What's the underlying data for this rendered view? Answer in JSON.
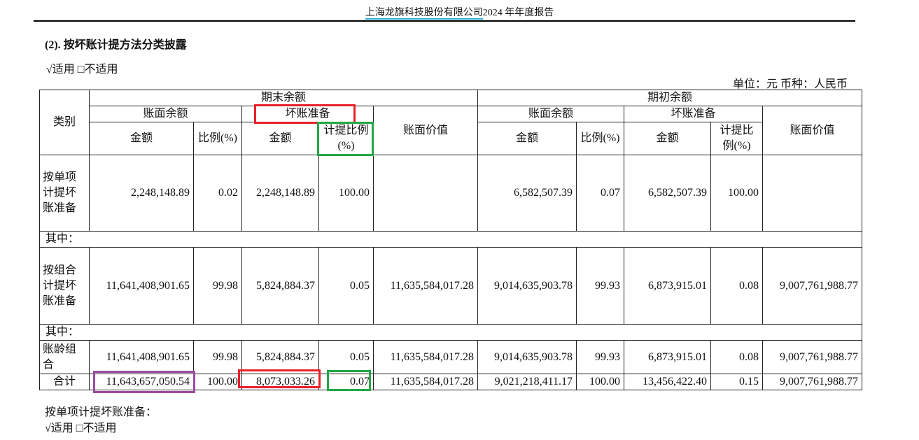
{
  "header": {
    "company": "上海龙旗科技股份有限公司",
    "report": "2024 年年度报告"
  },
  "section_title": "(2).  按坏账计提方法分类披露",
  "applicability": "√适用  □不适用",
  "unit": "单位：元    币种：人民币",
  "table": {
    "h_category": "类别",
    "h_end": "期末余额",
    "h_begin": "期初余额",
    "h_book_balance": "账面余额",
    "h_bad_debt": "坏账准备",
    "h_book_value": "账面价值",
    "h_amount": "金额",
    "h_ratio": "比例(%)",
    "h_provision_ratio": "计提比例(%)",
    "rows": [
      {
        "label": "按单项计提坏账准备",
        "cells": [
          "2,248,148.89",
          "0.02",
          "2,248,148.89",
          "100.00",
          "",
          "6,582,507.39",
          "0.07",
          "6,582,507.39",
          "100.00",
          ""
        ]
      },
      {
        "label": "其中：",
        "sub": true
      },
      {
        "label": "按组合计提坏账准备",
        "cells": [
          "11,641,408,901.65",
          "99.98",
          "5,824,884.37",
          "0.05",
          "11,635,584,017.28",
          "9,014,635,903.78",
          "99.93",
          "6,873,915.01",
          "0.08",
          "9,007,761,988.77"
        ]
      },
      {
        "label": "其中：",
        "sub": true
      },
      {
        "label": "账龄组合",
        "cells": [
          "11,641,408,901.65",
          "99.98",
          "5,824,884.37",
          "0.05",
          "11,635,584,017.28",
          "9,014,635,903.78",
          "99.93",
          "6,873,915.01",
          "0.08",
          "9,007,761,988.77"
        ]
      },
      {
        "label": "合计",
        "cells": [
          "11,643,657,050.54",
          "100.00",
          "8,073,033.26",
          "0.07",
          "11,635,584,017.28",
          "9,021,218,411.17",
          "100.00",
          "13,456,422.40",
          "0.15",
          "9,007,761,988.77"
        ]
      }
    ]
  },
  "footer": {
    "label": "按单项计提坏账准备：",
    "applicability": "√适用  □不适用"
  },
  "highlight_colors": {
    "red": "#e8202a",
    "green": "#22a845",
    "purple": "#9b4aa3"
  }
}
